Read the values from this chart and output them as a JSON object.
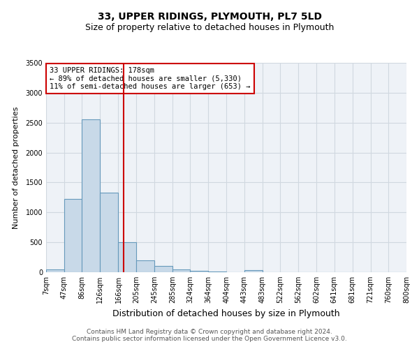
{
  "title": "33, UPPER RIDINGS, PLYMOUTH, PL7 5LD",
  "subtitle": "Size of property relative to detached houses in Plymouth",
  "xlabel": "Distribution of detached houses by size in Plymouth",
  "ylabel": "Number of detached properties",
  "bar_edges": [
    7,
    47,
    86,
    126,
    166,
    205,
    245,
    285,
    324,
    364,
    404,
    443,
    483,
    522,
    562,
    602,
    641,
    681,
    721,
    760,
    800
  ],
  "bar_heights": [
    50,
    1220,
    2560,
    1330,
    500,
    200,
    110,
    50,
    20,
    10,
    5,
    30,
    5,
    0,
    0,
    0,
    0,
    0,
    0,
    0
  ],
  "bar_color": "#c8d9e8",
  "bar_edge_color": "#6699bb",
  "vline_x": 178,
  "vline_color": "#cc0000",
  "annotation_text": "33 UPPER RIDINGS: 178sqm\n← 89% of detached houses are smaller (5,330)\n11% of semi-detached houses are larger (653) →",
  "annotation_box_color": "#ffffff",
  "annotation_box_edge_color": "#cc0000",
  "ylim": [
    0,
    3500
  ],
  "tick_labels": [
    "7sqm",
    "47sqm",
    "86sqm",
    "126sqm",
    "166sqm",
    "205sqm",
    "245sqm",
    "285sqm",
    "324sqm",
    "364sqm",
    "404sqm",
    "443sqm",
    "483sqm",
    "522sqm",
    "562sqm",
    "602sqm",
    "641sqm",
    "681sqm",
    "721sqm",
    "760sqm",
    "800sqm"
  ],
  "grid_color": "#d0d8e0",
  "background_color": "#eef2f7",
  "footer_text": "Contains HM Land Registry data © Crown copyright and database right 2024.\nContains public sector information licensed under the Open Government Licence v3.0.",
  "title_fontsize": 10,
  "subtitle_fontsize": 9,
  "xlabel_fontsize": 9,
  "ylabel_fontsize": 8,
  "tick_fontsize": 7,
  "annotation_fontsize": 7.5,
  "footer_fontsize": 6.5
}
